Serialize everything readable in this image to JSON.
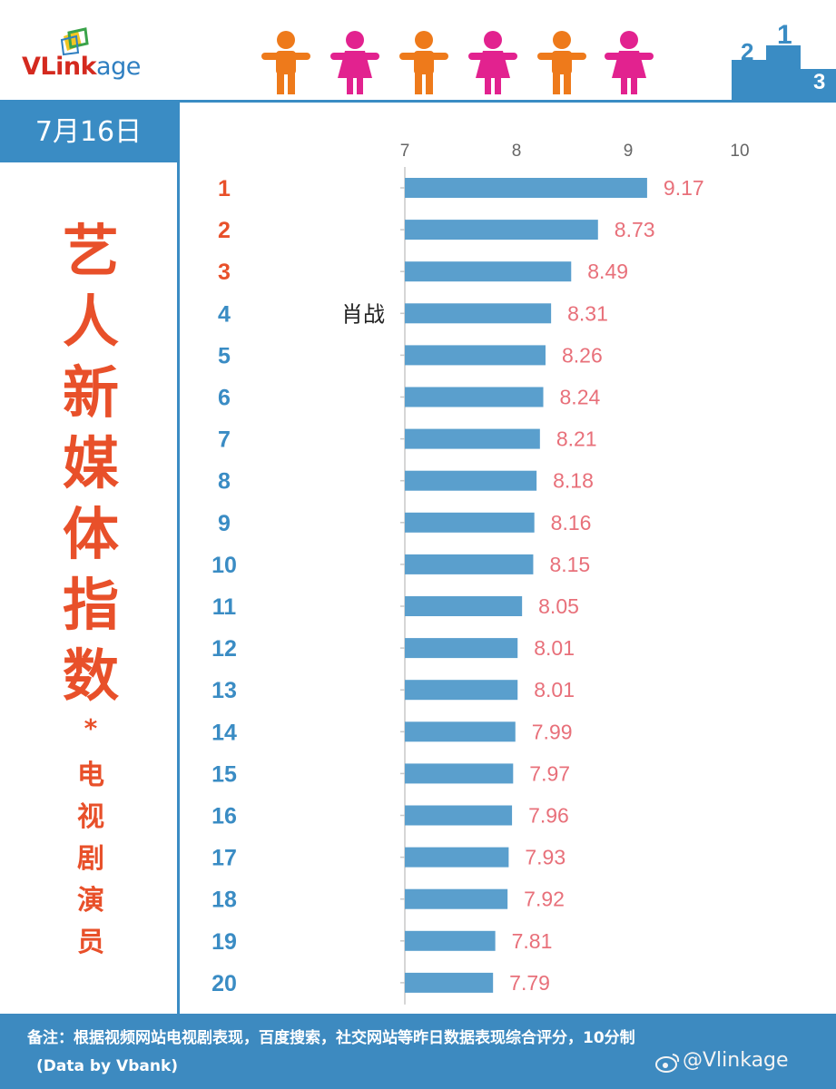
{
  "header": {
    "logo": {
      "v": "V",
      "link": "Link",
      "age": "age"
    }
  },
  "date": "7月16日",
  "title": {
    "main_chars": [
      "艺",
      "人",
      "新",
      "媒",
      "体",
      "指",
      "数"
    ],
    "star": "*",
    "sub_chars": [
      "电",
      "视",
      "剧",
      "演",
      "员"
    ]
  },
  "colors": {
    "accent_blue": "#3a8cc4",
    "bar": "#5a9fcd",
    "value_label": "#e8707a",
    "rank_top3": "#e8502a",
    "rank_rest": "#3a8cc4",
    "title": "#e8502a",
    "person_orange": "#ee7a1b",
    "person_pink": "#e2228f"
  },
  "icons": [
    "person-male-icon",
    "person-female-icon",
    "podium-icon",
    "weibo-icon"
  ],
  "chart_data": {
    "type": "bar",
    "orientation": "horizontal",
    "categories": [
      "1",
      "2",
      "3",
      "4",
      "5",
      "6",
      "7",
      "8",
      "9",
      "10",
      "11",
      "12",
      "13",
      "14",
      "15",
      "16",
      "17",
      "18",
      "19",
      "20"
    ],
    "values": [
      9.17,
      8.73,
      8.49,
      8.31,
      8.26,
      8.24,
      8.21,
      8.18,
      8.16,
      8.15,
      8.05,
      8.01,
      8.01,
      7.99,
      7.97,
      7.96,
      7.93,
      7.92,
      7.81,
      7.79
    ],
    "value_labels": [
      "9.17",
      "8.73",
      "8.49",
      "8.31",
      "8.26",
      "8.24",
      "8.21",
      "8.18",
      "8.16",
      "8.15",
      "8.05",
      "8.01",
      "8.01",
      "7.99",
      "7.97",
      "7.96",
      "7.93",
      "7.92",
      "7.81",
      "7.79"
    ],
    "annotations": [
      {
        "category": "4",
        "text": "肖战"
      }
    ],
    "xlim": [
      7,
      10
    ],
    "xticks": [
      "7",
      "8",
      "9",
      "10"
    ],
    "grid": false,
    "title": "",
    "xlabel": "",
    "ylabel": ""
  },
  "footer": {
    "note": "备注：根据视频网站电视剧表现，百度搜索，社交网站等昨日数据表现综合评分，10分制",
    "source": "(Data by Vbank)",
    "watermark": "@Vlinkage"
  }
}
